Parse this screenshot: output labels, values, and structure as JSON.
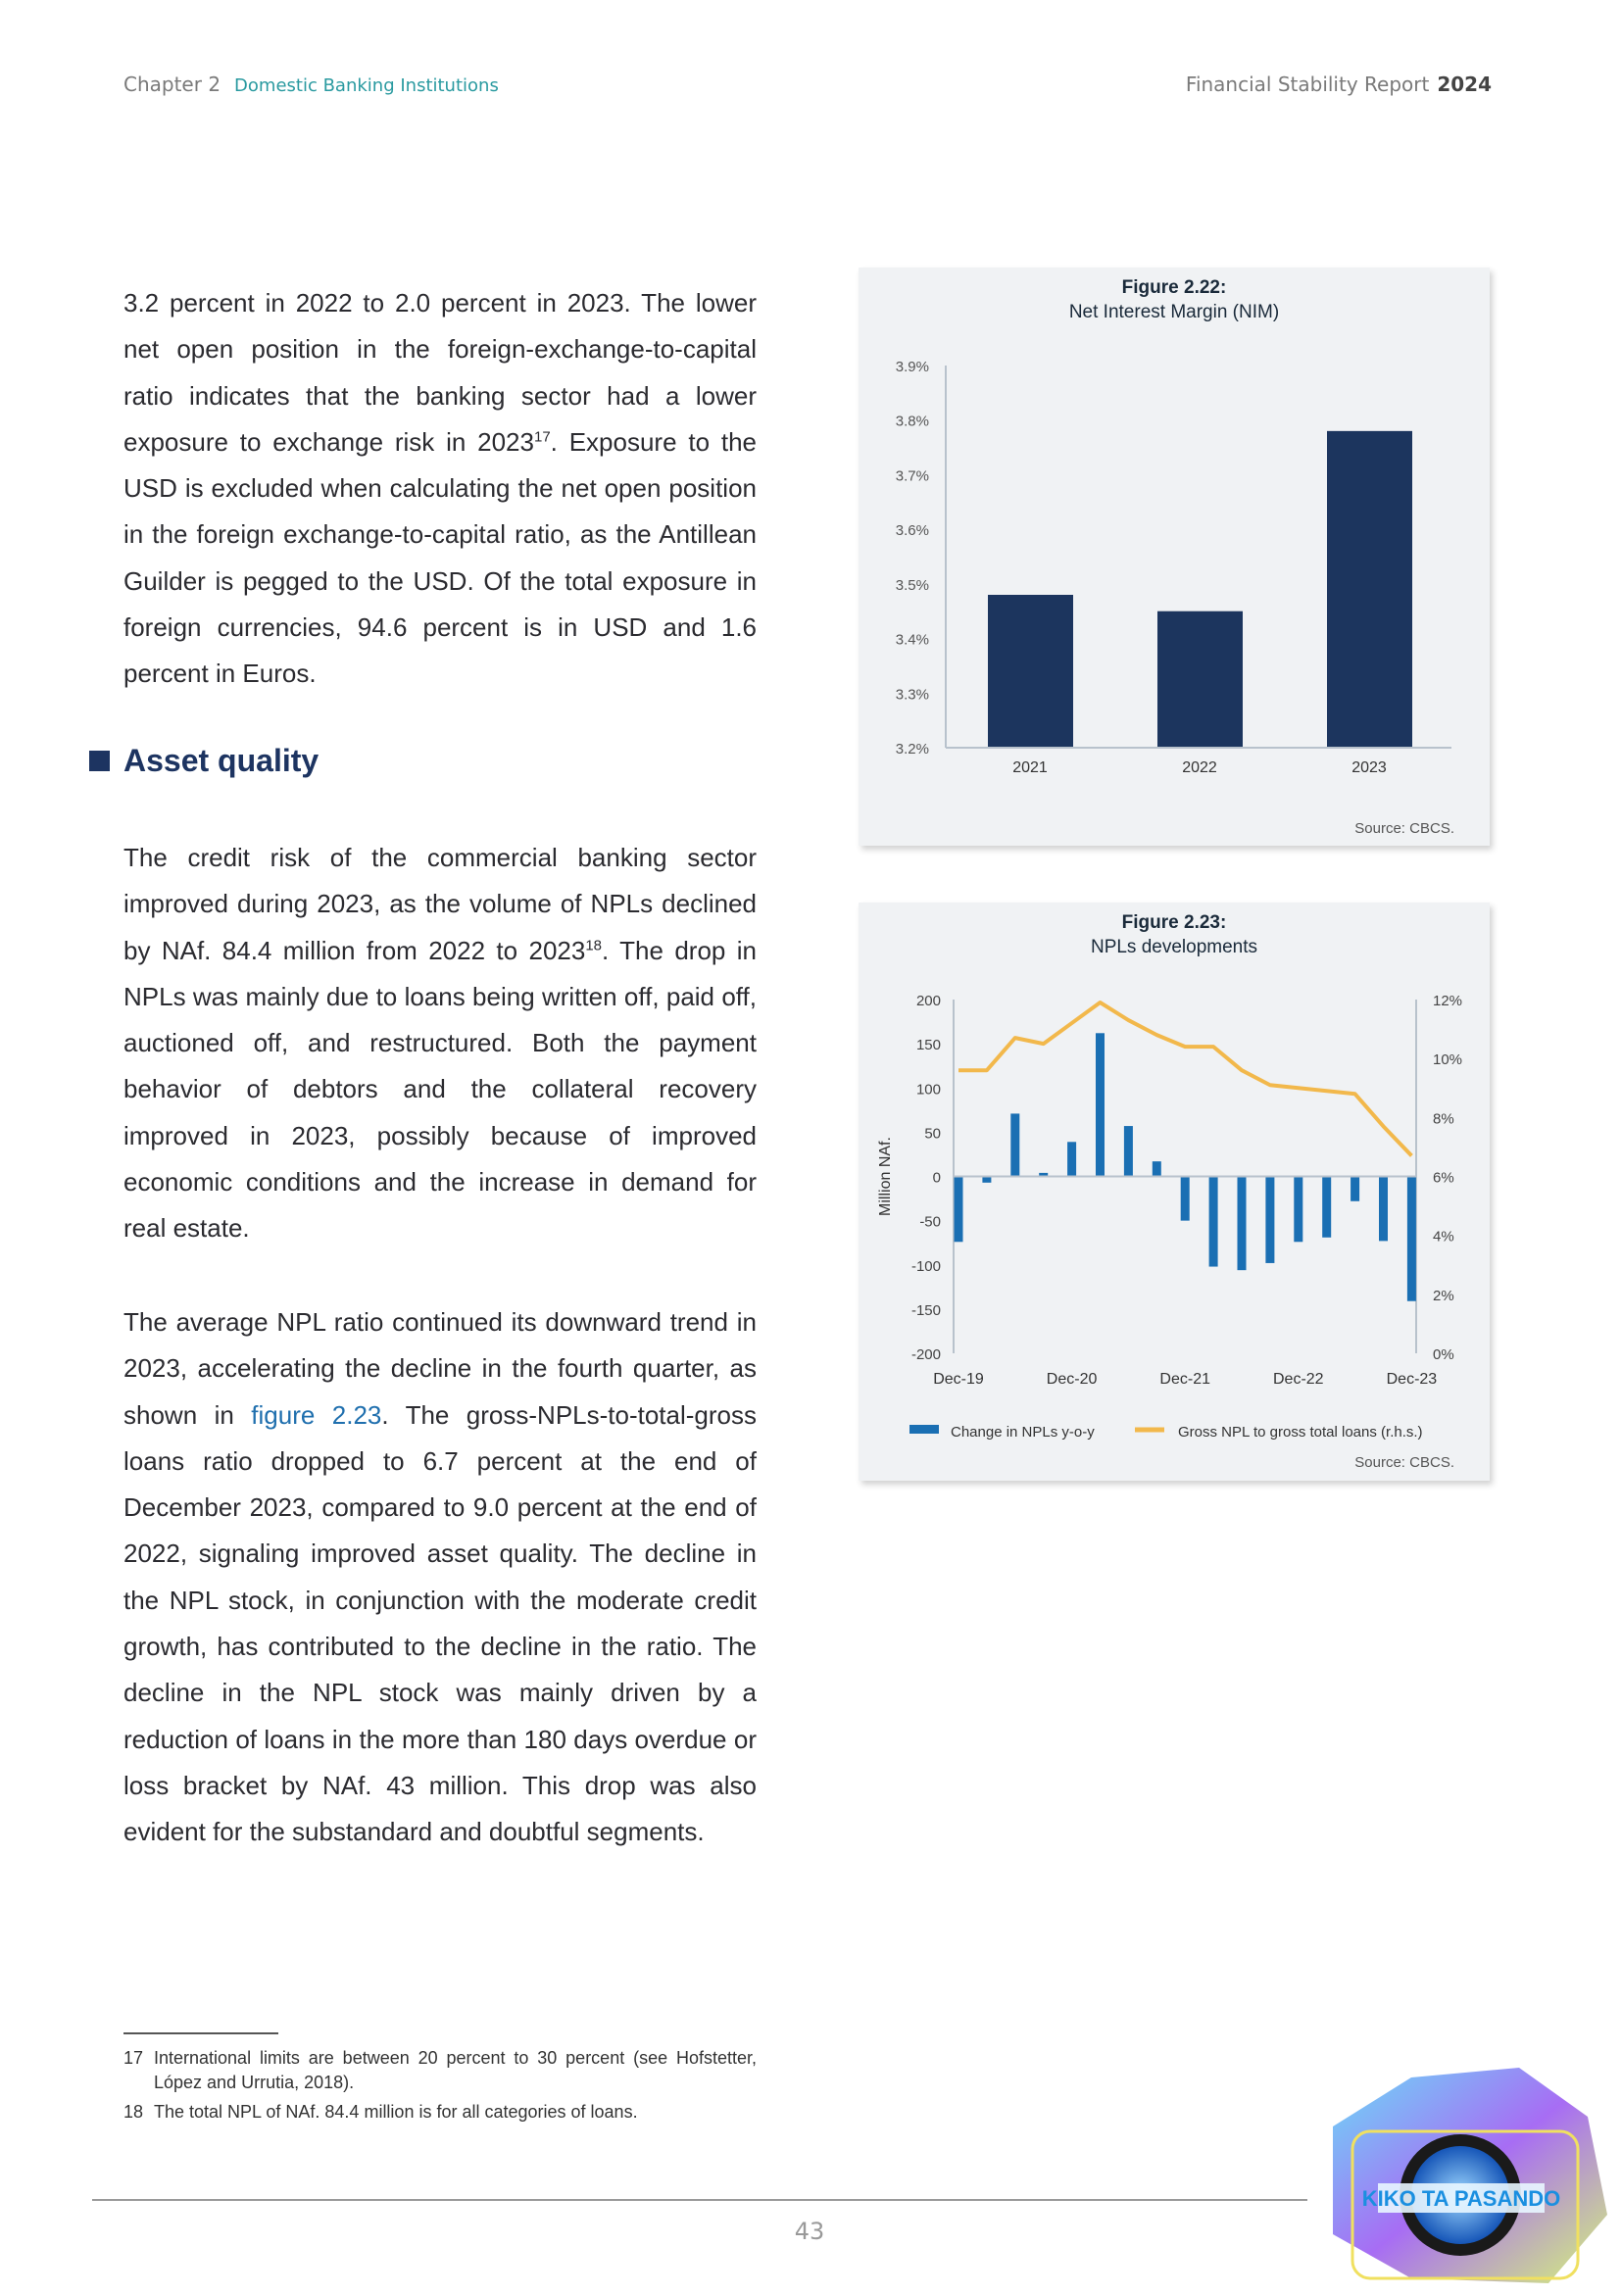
{
  "header": {
    "chapter": "Chapter 2",
    "section": "Domestic Banking Institutions",
    "report": "Financial Stability Report",
    "year": "2024"
  },
  "body": {
    "para1_a": "3.2 percent in 2022 to 2.0 percent in 2023. The lower net open position in the foreign-exchange-to-capital ratio indicates that the banking sector had a lower exposure to exchange risk in 2023",
    "para1_sup": "17",
    "para1_b": ". Exposure to the USD is excluded when calculating the net open position in the foreign exchange-to-capital ratio, as the Antillean Guilder is pegged to the USD. Of the total exposure in foreign currencies, 94.6 percent is in USD and 1.6 percent in Euros.",
    "heading": "Asset quality",
    "para2_a": "The credit risk of the commercial banking sector improved during 2023, as the volume of NPLs declined by NAf. 84.4 million from 2022 to 2023",
    "para2_sup": "18",
    "para2_b": ". The drop in NPLs was mainly due to loans being written off, paid off, auctioned off, and restructured. Both the payment behavior of debtors and the collateral recovery improved in 2023, possibly because of improved economic conditions and the increase in demand for real estate.",
    "para3_a": "The average NPL ratio continued its downward trend in 2023, accelerating the decline in the fourth quarter, as shown in ",
    "para3_link": "figure 2.23",
    "para3_b": ". The gross-NPLs-to-total-gross loans ratio dropped to 6.7 percent at the end of December 2023, compared to 9.0 percent at the end of 2022, signaling improved asset quality. The decline in the NPL stock, in conjunction with the moderate credit growth, has contributed to the decline in the ratio. The decline in the NPL stock was mainly driven by a reduction of loans in the more than 180 days overdue or loss bracket by NAf. 43 million. This drop was also evident for the substandard and doubtful segments."
  },
  "footnotes": [
    {
      "num": "17",
      "text": "International limits are between 20 percent to 30 percent (see Hofstetter, López and Urrutia, 2018)."
    },
    {
      "num": "18",
      "text": "The total NPL of NAf. 84.4 million is for all categories of loans."
    }
  ],
  "page_number": "43",
  "logo": {
    "text": "KIKO TA PASANDO"
  },
  "chart_data": [
    {
      "type": "bar",
      "figure_label": "Figure 2.22:",
      "title": "Net Interest Margin (NIM)",
      "categories": [
        "2021",
        "2022",
        "2023"
      ],
      "values": [
        3.48,
        3.45,
        3.78
      ],
      "ylim": [
        3.2,
        3.9
      ],
      "yticks": [
        "3.2%",
        "3.3%",
        "3.4%",
        "3.5%",
        "3.6%",
        "3.7%",
        "3.8%",
        "3.9%"
      ],
      "source": "Source: CBCS.",
      "color": "#1c355e",
      "grid": false
    },
    {
      "type": "bar+line",
      "figure_label": "Figure 2.23:",
      "title": "NPLs developments",
      "ylabel": "Million NAf.",
      "xticks": [
        "Dec-19",
        "Dec-20",
        "Dec-21",
        "Dec-22",
        "Dec-23"
      ],
      "x": [
        "Dec-19",
        "Mar-20",
        "Jun-20",
        "Sep-20",
        "Dec-20",
        "Mar-21",
        "Jun-21",
        "Sep-21",
        "Dec-21",
        "Mar-22",
        "Jun-22",
        "Sep-22",
        "Dec-22",
        "Mar-23",
        "Jun-23",
        "Sep-23",
        "Dec-23"
      ],
      "series": [
        {
          "name": "Change in NPLs y-o-y",
          "type": "bar",
          "axis": "left",
          "color": "#1a6fb3",
          "values": [
            -74,
            -7,
            71,
            4,
            39,
            162,
            57,
            17,
            -50,
            -102,
            -106,
            -98,
            -74,
            -69,
            -28,
            -73,
            -141
          ]
        },
        {
          "name": "Gross NPL to gross total loans (r.h.s.)",
          "type": "line",
          "axis": "right",
          "color": "#f2b84b",
          "values": [
            9.6,
            9.6,
            10.7,
            10.5,
            11.2,
            11.9,
            11.3,
            10.8,
            10.4,
            10.4,
            9.6,
            9.1,
            9.0,
            8.9,
            8.8,
            7.7,
            6.7
          ]
        }
      ],
      "ylim": [
        -200,
        200
      ],
      "yticks": [
        "200",
        "150",
        "100",
        "50",
        "0",
        "-50",
        "-100",
        "-150",
        "-200"
      ],
      "y2lim": [
        0,
        12
      ],
      "y2ticks": [
        "12%",
        "10%",
        "8%",
        "6%",
        "4%",
        "2%",
        "0%"
      ],
      "legend": "bottom",
      "source": "Source: CBCS.",
      "grid": false
    }
  ]
}
